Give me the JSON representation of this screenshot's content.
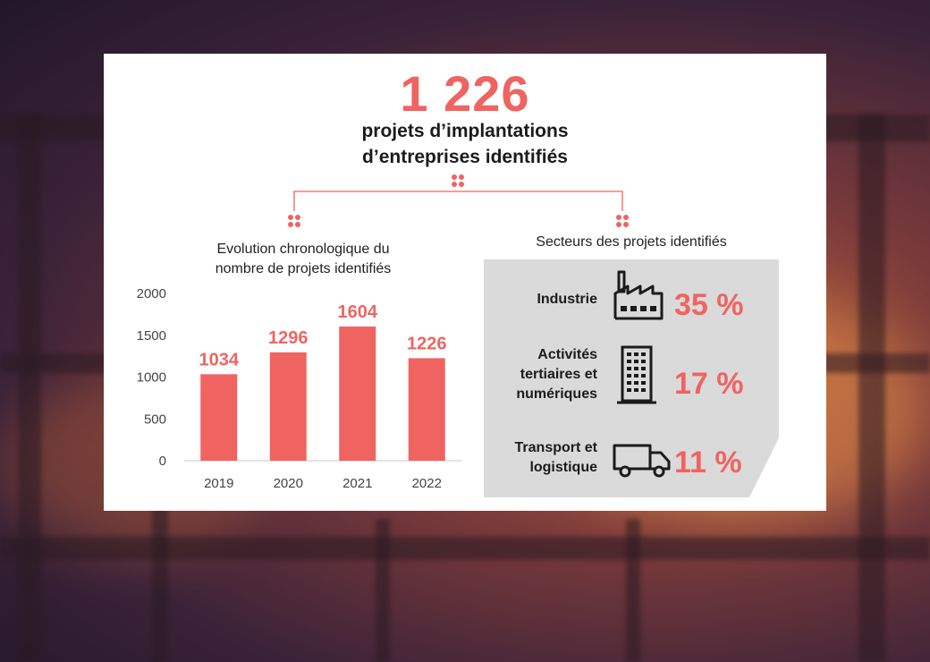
{
  "headline": {
    "total": "1 226",
    "subtitle_line1": "projets d’implantations",
    "subtitle_line2": "d’entreprises identifiés"
  },
  "colors": {
    "accent": "#ef6461",
    "panel": "#dadada",
    "text": "#1b1b1b"
  },
  "chart_data": {
    "type": "bar",
    "title": "Evolution chronologique du nombre de projets identifiés",
    "title_line1": "Evolution chronologique du",
    "title_line2": "nombre de projets identifiés",
    "categories": [
      "2019",
      "2020",
      "2021",
      "2022"
    ],
    "values": [
      1034,
      1296,
      1604,
      1226
    ],
    "data_labels": [
      "1034",
      "1296",
      "1604",
      "1226"
    ],
    "yticks": [
      0,
      500,
      1000,
      1500,
      2000
    ],
    "ylim": [
      0,
      2000
    ],
    "grid": false,
    "xlabel": "",
    "ylabel": ""
  },
  "sectors": {
    "title": "Secteurs des projets identifiés",
    "items": [
      {
        "label_lines": [
          "Industrie"
        ],
        "percent": "35 %",
        "icon": "factory-icon"
      },
      {
        "label_lines": [
          "Activités",
          "tertiaires et",
          "numériques"
        ],
        "percent": "17 %",
        "icon": "office-building-icon"
      },
      {
        "label_lines": [
          "Transport et",
          "logistique"
        ],
        "percent": "11 %",
        "icon": "truck-icon"
      }
    ]
  }
}
